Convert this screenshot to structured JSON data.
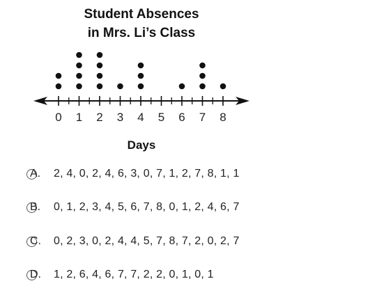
{
  "chart_data": {
    "type": "dot_plot",
    "title_line1": "Student Absences",
    "title_line2": "in Mrs. Li’s Class",
    "xlabel": "Days",
    "x_ticks": [
      0,
      1,
      2,
      3,
      4,
      5,
      6,
      7,
      8
    ],
    "x_min": 0,
    "x_max": 8,
    "x_values": [
      0,
      1,
      2,
      3,
      4,
      5,
      6,
      7,
      8
    ],
    "counts": [
      2,
      4,
      4,
      1,
      3,
      0,
      1,
      3,
      1
    ]
  },
  "choices": [
    {
      "letter": "A.",
      "text": "2, 4, 0, 2, 4, 6, 3, 0, 7, 1, 2, 7, 8, 1, 1"
    },
    {
      "letter": "B.",
      "text": "0, 1, 2, 3, 4, 5, 6, 7, 8, 0, 1, 2, 4, 6, 7"
    },
    {
      "letter": "C.",
      "text": "0, 2, 3, 0, 2, 4, 4, 5, 7, 8, 7, 2, 0, 2, 7"
    },
    {
      "letter": "D.",
      "text": "1, 2, 6, 4, 6, 7, 7, 2, 2, 0, 1, 0, 1"
    }
  ]
}
